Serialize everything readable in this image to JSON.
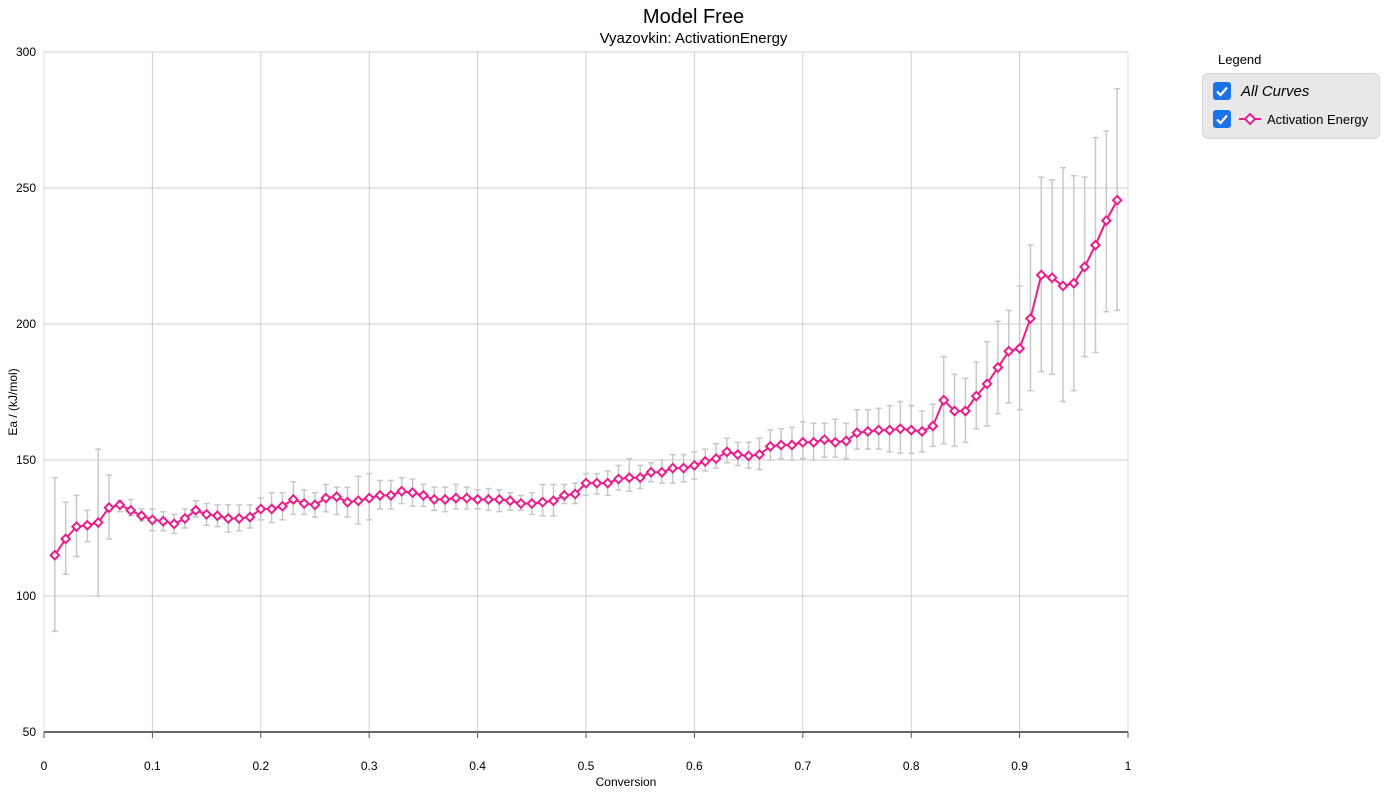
{
  "chart_data": {
    "type": "line",
    "title": "Model Free",
    "subtitle": "Vyazovkin: ActivationEnergy",
    "xlabel": "Conversion",
    "ylabel": "Ea / (kJ/mol)",
    "xlim": [
      0,
      1
    ],
    "ylim": [
      50,
      300
    ],
    "x_ticks": [
      "0",
      "0.1",
      "0.2",
      "0.3",
      "0.4",
      "0.5",
      "0.6",
      "0.7",
      "0.8",
      "0.9",
      "1"
    ],
    "y_ticks": [
      "50",
      "100",
      "150",
      "200",
      "250",
      "300"
    ],
    "grid": true,
    "legend_placement": "right",
    "series": [
      {
        "name": "Activation Energy",
        "color": "#e91e8c",
        "x": [
          0.01,
          0.02,
          0.03,
          0.04,
          0.05,
          0.06,
          0.07,
          0.08,
          0.09,
          0.1,
          0.11,
          0.12,
          0.13,
          0.14,
          0.15,
          0.16,
          0.17,
          0.18,
          0.19,
          0.2,
          0.21,
          0.22,
          0.23,
          0.24,
          0.25,
          0.26,
          0.27,
          0.28,
          0.29,
          0.3,
          0.31,
          0.32,
          0.33,
          0.34,
          0.35,
          0.36,
          0.37,
          0.38,
          0.39,
          0.4,
          0.41,
          0.42,
          0.43,
          0.44,
          0.45,
          0.46,
          0.47,
          0.48,
          0.49,
          0.5,
          0.51,
          0.52,
          0.53,
          0.54,
          0.55,
          0.56,
          0.57,
          0.58,
          0.59,
          0.6,
          0.61,
          0.62,
          0.63,
          0.64,
          0.65,
          0.66,
          0.67,
          0.68,
          0.69,
          0.7,
          0.71,
          0.72,
          0.73,
          0.74,
          0.75,
          0.76,
          0.77,
          0.78,
          0.79,
          0.8,
          0.81,
          0.82,
          0.83,
          0.84,
          0.85,
          0.86,
          0.87,
          0.88,
          0.89,
          0.9,
          0.91,
          0.92,
          0.93,
          0.94,
          0.95,
          0.96,
          0.97,
          0.98,
          0.99
        ],
        "y": [
          115,
          121,
          125.5,
          126,
          127,
          132.5,
          133.5,
          131.5,
          129.5,
          128,
          127.5,
          126.5,
          128.5,
          131.5,
          130,
          129.5,
          128.5,
          128.5,
          129,
          132,
          132,
          133,
          135.5,
          134,
          133.5,
          136,
          136.5,
          134.5,
          135,
          136,
          137,
          137,
          138.5,
          138,
          137,
          135.5,
          135.5,
          136,
          136,
          135.5,
          135.5,
          135.5,
          135,
          134,
          134,
          134.5,
          135,
          137,
          137.5,
          141.5,
          141.5,
          141.5,
          143,
          143.5,
          143.5,
          145.5,
          145.5,
          147,
          147,
          148,
          149.5,
          150.5,
          153,
          152,
          151.5,
          152,
          155,
          155.5,
          155.5,
          156.5,
          156.5,
          157.5,
          156.5,
          157,
          160,
          160.5,
          161,
          161,
          161.5,
          161,
          160.5,
          162.5,
          172,
          168,
          168,
          173.5,
          178,
          184,
          190,
          191,
          202,
          218,
          217,
          214,
          215,
          221,
          229,
          238,
          245.5
        ],
        "err_lo": [
          87,
          108,
          114.5,
          120,
          100,
          121,
          131,
          129.5,
          127.5,
          124,
          124,
          123,
          125,
          129,
          126,
          125.5,
          123.5,
          124,
          125,
          128,
          127,
          128,
          130,
          130,
          129,
          131,
          130,
          129,
          126.5,
          128,
          132,
          132,
          134,
          133,
          133,
          131.5,
          131,
          132,
          132,
          132,
          131.5,
          131,
          131.5,
          131.5,
          130,
          129.5,
          129.5,
          134,
          134,
          137,
          137.5,
          137,
          139,
          138.5,
          139.5,
          142,
          141.5,
          141.5,
          142,
          143,
          146,
          147,
          149,
          148,
          147,
          146.5,
          150,
          150.5,
          150,
          150.5,
          150,
          151,
          151,
          150.5,
          154,
          154,
          154,
          153,
          152.5,
          152.5,
          153,
          155,
          156,
          155,
          156.5,
          161.5,
          162.5,
          167,
          171,
          168.5,
          175.5,
          182.5,
          181.5,
          171.5,
          175.5,
          188,
          189.5,
          204.5,
          205
        ],
        "err_hi": [
          143.5,
          134.5,
          137,
          131.5,
          154,
          144.5,
          135,
          135.5,
          132,
          132,
          131,
          130,
          132,
          135,
          134,
          133.5,
          133.5,
          133.5,
          133.5,
          136,
          138,
          138,
          142,
          139,
          138,
          141,
          140,
          140,
          144,
          145,
          142.5,
          142.5,
          143.5,
          143,
          141,
          140,
          140,
          141,
          140,
          139,
          139.5,
          139,
          138,
          137,
          138,
          141,
          141,
          141,
          141.5,
          145,
          145,
          146,
          148,
          150.5,
          148,
          149,
          150,
          152,
          152,
          153,
          154,
          156,
          158,
          156.5,
          156.5,
          158,
          161,
          161.5,
          162,
          164,
          163.5,
          163.5,
          165,
          163.5,
          168.5,
          168.5,
          169,
          170,
          171.5,
          170,
          168,
          170.5,
          188,
          181.5,
          180,
          186,
          193.5,
          201,
          205,
          214,
          229,
          254,
          253,
          257.5,
          254.5,
          254,
          268.5,
          271,
          286.5
        ]
      }
    ]
  },
  "legend": {
    "title": "Legend",
    "all_curves_label": "All Curves",
    "series_label": "Activation Energy"
  }
}
